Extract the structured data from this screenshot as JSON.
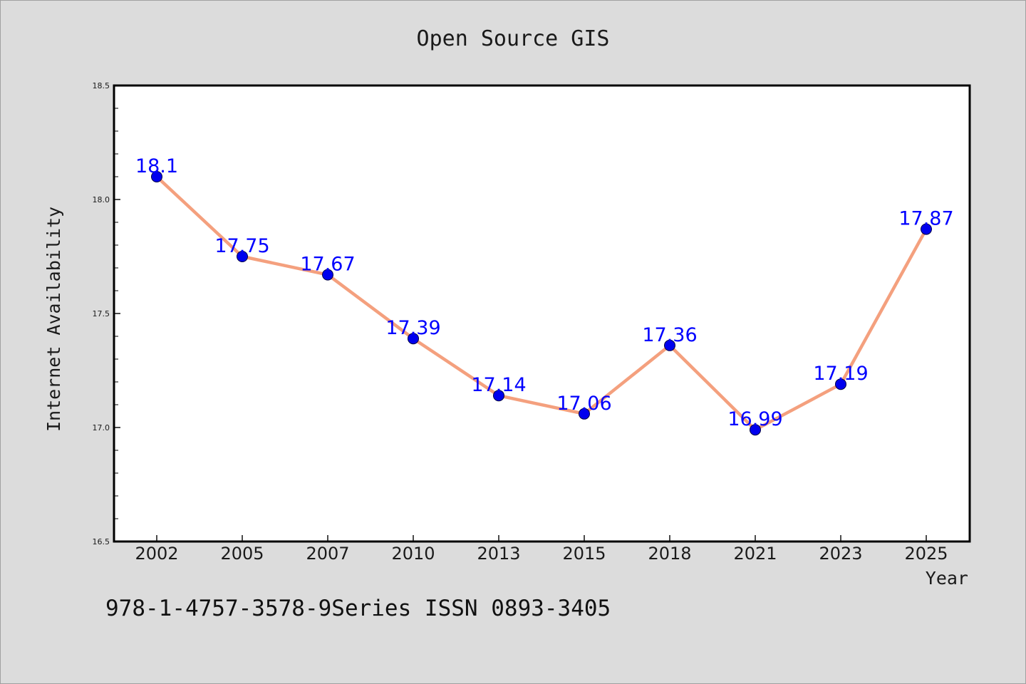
{
  "chart_data": {
    "type": "line",
    "title": "Open Source GIS",
    "xlabel": "Year",
    "ylabel": "Internet Availability",
    "categories": [
      "2002",
      "2005",
      "2007",
      "2010",
      "2013",
      "2015",
      "2018",
      "2021",
      "2023",
      "2025"
    ],
    "series": [
      {
        "values": [
          18.1,
          17.75,
          17.67,
          17.39,
          17.14,
          17.06,
          17.36,
          16.99,
          17.19,
          17.87
        ],
        "data_labels": [
          "18.1",
          "17.75",
          "17.67",
          "17.39",
          "17.14",
          "17.06",
          "17.36",
          "16.99",
          "17.19",
          "17.87"
        ]
      }
    ],
    "ylim": [
      16.5,
      18.5
    ],
    "y_ticks": [
      "16.5",
      "17.0",
      "17.5",
      "18.0",
      "18.5"
    ],
    "grid": false,
    "colors": {
      "line": "#f4a07e",
      "marker": "#0000ee",
      "label": "#0000ff"
    }
  },
  "footer": {
    "text": "978-1-4757-3578-9Series ISSN 0893-3405"
  }
}
